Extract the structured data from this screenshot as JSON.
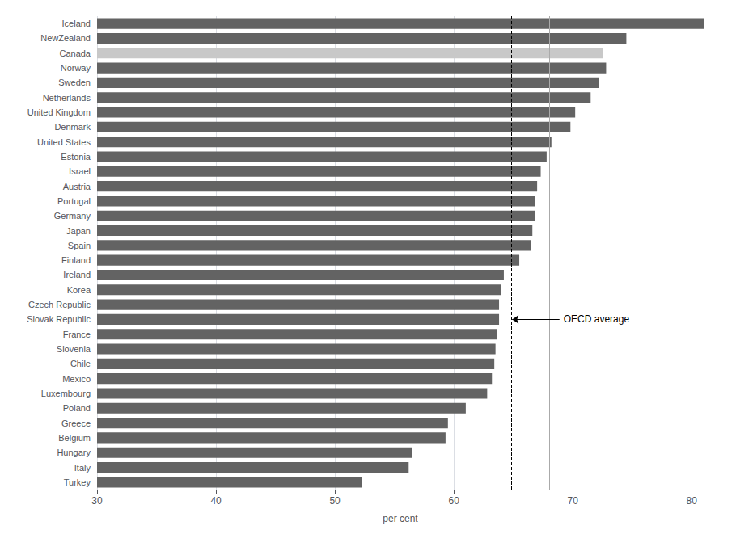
{
  "chart_data": {
    "type": "bar",
    "orientation": "horizontal",
    "categories": [
      "Iceland",
      "NewZealand",
      "Canada",
      "Norway",
      "Sweden",
      "Netherlands",
      "United Kingdom",
      "Denmark",
      "United States",
      "Estonia",
      "Israel",
      "Austria",
      "Portugal",
      "Germany",
      "Japan",
      "Spain",
      "Finland",
      "Ireland",
      "Korea",
      "Czech Republic",
      "Slovak Republic",
      "France",
      "Slovenia",
      "Chile",
      "Mexico",
      "Luxembourg",
      "Poland",
      "Greece",
      "Belgium",
      "Hungary",
      "Italy",
      "Turkey"
    ],
    "values": [
      81.0,
      74.5,
      72.5,
      72.8,
      72.2,
      71.5,
      70.2,
      69.8,
      68.2,
      67.8,
      67.3,
      67.0,
      66.8,
      66.8,
      66.6,
      66.5,
      65.5,
      64.2,
      64.0,
      63.8,
      63.8,
      63.6,
      63.5,
      63.4,
      63.2,
      62.8,
      61.0,
      59.5,
      59.3,
      56.5,
      56.2,
      52.3
    ],
    "colors": [
      "#636363",
      "#636363",
      "#c8c8c8",
      "#636363",
      "#636363",
      "#636363",
      "#636363",
      "#636363",
      "#636363",
      "#636363",
      "#636363",
      "#636363",
      "#636363",
      "#636363",
      "#636363",
      "#636363",
      "#636363",
      "#636363",
      "#636363",
      "#636363",
      "#636363",
      "#636363",
      "#636363",
      "#636363",
      "#636363",
      "#636363",
      "#636363",
      "#636363",
      "#636363",
      "#636363",
      "#636363",
      "#636363"
    ],
    "xlabel": "per cent",
    "xlim": [
      30,
      81
    ],
    "xticks": [
      30,
      40,
      50,
      60,
      70,
      80
    ],
    "grid": true,
    "reference_lines": [
      {
        "x": 64.8,
        "color": "#000000",
        "line_style": "dashed"
      },
      {
        "x": 68.0,
        "color": "#aaaaaa",
        "line_style": "solid"
      }
    ],
    "annotations": [
      {
        "text": "OECD average",
        "x": 64.8,
        "category": "Slovak Republic"
      }
    ]
  }
}
